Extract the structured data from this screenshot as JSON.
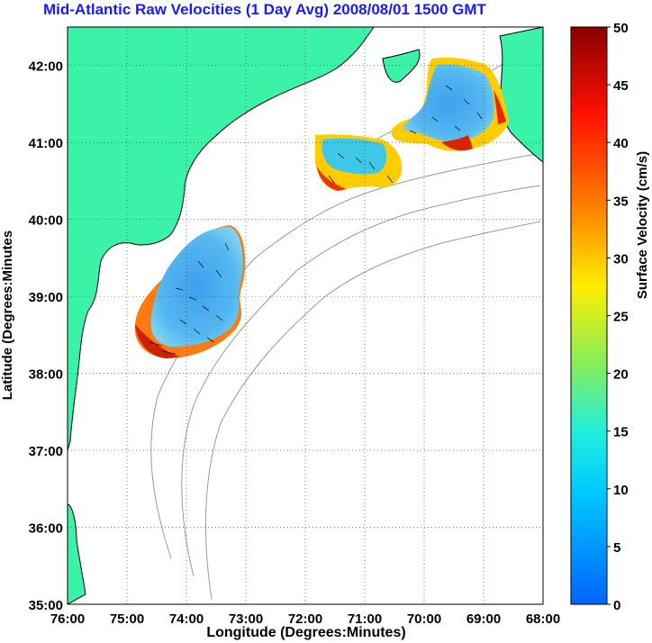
{
  "title": "Mid-Atlantic Raw Velocities (1 Day Avg) 2008/08/01 1500 GMT",
  "xlabel": "Longitude (Degrees:Minutes)",
  "ylabel": "Latitude (Degrees:Minutes",
  "colorbar_label": "Surface Velocity (cm/s)",
  "x_ticks": [
    "76:00",
    "75:00",
    "74:00",
    "73:00",
    "72:00",
    "71:00",
    "70:00",
    "69:00",
    "68:00"
  ],
  "y_ticks": [
    "42:00",
    "41:00",
    "40:00",
    "39:00",
    "38:00",
    "37:00",
    "36:00",
    "35:00"
  ],
  "colorbar_ticks": [
    "50",
    "45",
    "40",
    "35",
    "30",
    "25",
    "20",
    "15",
    "10",
    "5",
    "0"
  ],
  "map_extent": {
    "lon_min": -76,
    "lon_max": -68,
    "lat_min": 35,
    "lat_max": 42.5
  },
  "colorbar_range": [
    0,
    50
  ],
  "colors": {
    "land": "#3af2a8",
    "title": "#1a1aff",
    "bathymetry": "#999999"
  },
  "colorscale": "jet",
  "grid": true
}
